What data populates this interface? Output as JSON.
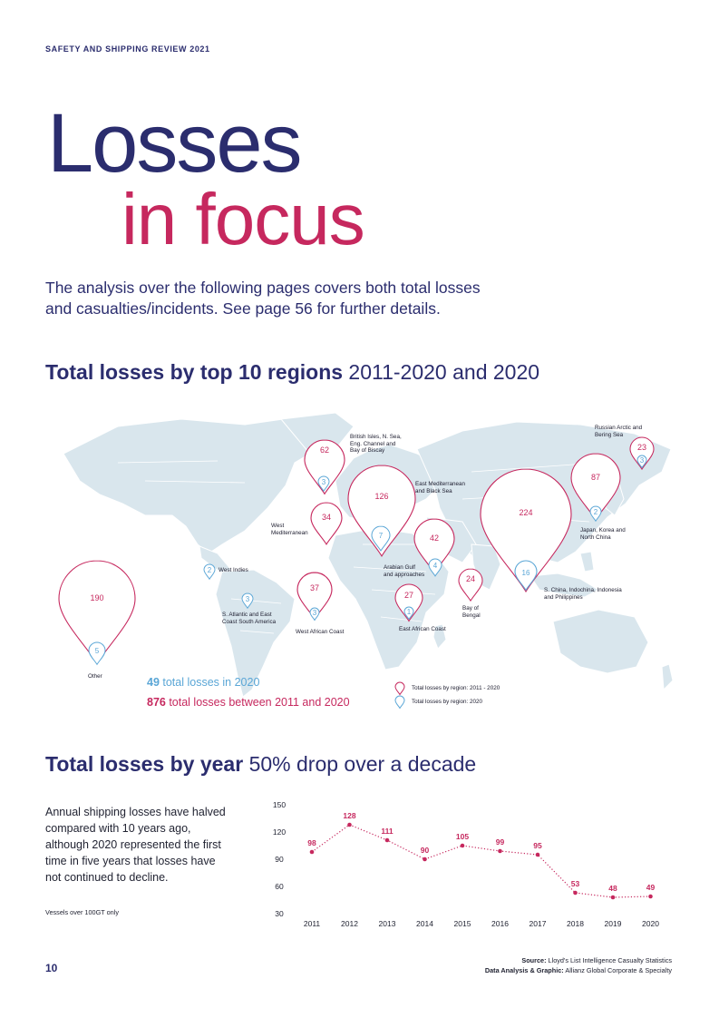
{
  "header": {
    "label": "SAFETY AND SHIPPING REVIEW 2021"
  },
  "title": {
    "line1": "Losses",
    "line2": "in focus"
  },
  "intro": {
    "line1": "The analysis over the following pages covers both total losses",
    "line2": "and casualties/incidents. See page 56 for further details."
  },
  "regions_section": {
    "title_bold": "Total losses by top 10 regions",
    "title_rest": " 2011-2020 and 2020"
  },
  "regions": [
    {
      "name": "British Isles, N. Sea, Eng. Channel and Bay of Biscay",
      "total_2011_2020": "62",
      "total_2020": "3"
    },
    {
      "name": "East Mediterranean and Black Sea",
      "total_2011_2020": "126",
      "total_2020": "7"
    },
    {
      "name": "West Mediterranean",
      "total_2011_2020": "34",
      "total_2020": ""
    },
    {
      "name": "Arabian Gulf and approaches",
      "total_2011_2020": "42",
      "total_2020": "4"
    },
    {
      "name": "S. China, Indochina, Indonesia and Philippines",
      "total_2011_2020": "224",
      "total_2020": "16"
    },
    {
      "name": "Japan, Korea and North China",
      "total_2011_2020": "87",
      "total_2020": "2"
    },
    {
      "name": "Russian Arctic and Bering Sea",
      "total_2011_2020": "23",
      "total_2020": "3"
    },
    {
      "name": "West African Coast",
      "total_2011_2020": "37",
      "total_2020": "3"
    },
    {
      "name": "East African Coast",
      "total_2011_2020": "27",
      "total_2020": "1"
    },
    {
      "name": "Bay of Bengal",
      "total_2011_2020": "24",
      "total_2020": ""
    },
    {
      "name": "West Indies",
      "total_2011_2020": "",
      "total_2020": "2"
    },
    {
      "name": "S. Atlantic and East Coast South America",
      "total_2011_2020": "",
      "total_2020": "3"
    },
    {
      "name": "Other",
      "total_2011_2020": "190",
      "total_2020": "5"
    }
  ],
  "map_labels": {
    "british": [
      "British Isles, N. Sea,",
      "Eng. Channel and",
      "Bay of Biscay"
    ],
    "eastmed": [
      "East Mediterranean",
      "and Black Sea"
    ],
    "russian": [
      "Russian Arctic and",
      "Bering Sea"
    ],
    "westmed": [
      "West",
      "Mediterranean"
    ],
    "japan": [
      "Japan, Korea and",
      "North China"
    ],
    "westindies": [
      "West Indies"
    ],
    "arabian": [
      "Arabian Gulf",
      "and approaches"
    ],
    "schina": [
      "S. China, Indochina, Indonesia",
      "and Philippines"
    ],
    "bengal": [
      "Bay of",
      "Bengal"
    ],
    "satlantic": [
      "S. Atlantic and East",
      "Coast South America"
    ],
    "eastafrica": [
      "East African Coast"
    ],
    "westafrica": [
      "West African Coast"
    ],
    "other": [
      "Other"
    ]
  },
  "stats": {
    "num_2020": "49",
    "text_2020": " total losses in 2020",
    "num_decade": "876",
    "text_decade": " total losses between 2011 and 2020"
  },
  "legend": {
    "decade": "Total losses by region: 2011 - 2020",
    "year": "Total losses by region: 2020"
  },
  "colors": {
    "navy": "#2b2d6e",
    "crimson": "#c6285e",
    "light_blue": "#5aa6d6",
    "map": "#d9e6ed"
  },
  "year_section": {
    "title_bold": "Total losses by year",
    "title_rest": " 50% drop over a decade"
  },
  "year_text": [
    "Annual shipping losses have halved",
    "compared with 10 years ago,",
    "although 2020 represented the first",
    "time in five years that losses have",
    "not continued to decline."
  ],
  "vessels_note": "Vessels over 100GT only",
  "chart_data": {
    "type": "line",
    "x": [
      "2011",
      "2012",
      "2013",
      "2014",
      "2015",
      "2016",
      "2017",
      "2018",
      "2019",
      "2020"
    ],
    "series": [
      {
        "values": [
          98,
          128,
          111,
          90,
          105,
          99,
          95,
          53,
          48,
          49
        ]
      }
    ],
    "yticks": [
      "150",
      "120",
      "90",
      "60",
      "30"
    ],
    "ylim": [
      30,
      150
    ],
    "grid": false,
    "line_style": "dotted"
  },
  "source": {
    "label1": "Source:",
    "text1": " Lloyd's List Intelligence Casualty Statistics",
    "label2": "Data Analysis & Graphic:",
    "text2": " Allianz Global Corporate & Specialty"
  },
  "page_number": "10"
}
